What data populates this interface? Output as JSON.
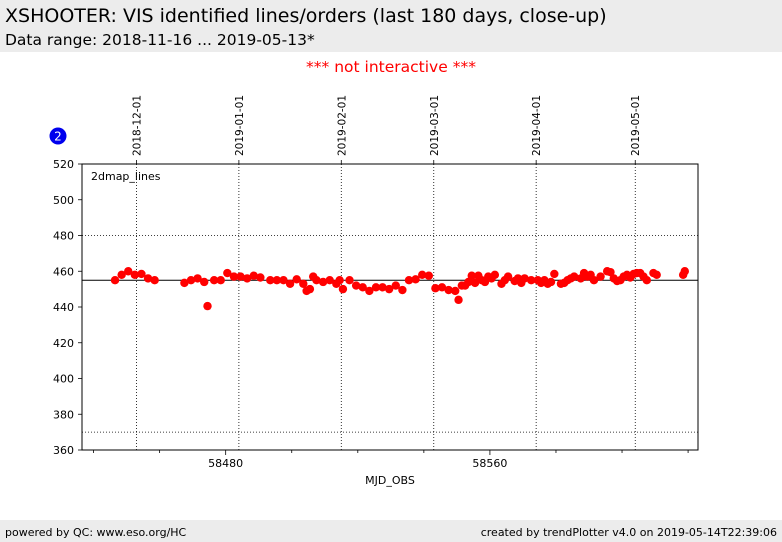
{
  "header": {
    "title": "XSHOOTER: VIS identified lines/orders (last 180 days, close-up)",
    "subtitle": "Data range: 2018-11-16 ... 2019-05-13*"
  },
  "notice": "*** not interactive ***",
  "footer": {
    "left": "powered by QC: www.eso.org/HC",
    "right": "created by trendPlotter v4.0 on 2019-05-14T22:39:06"
  },
  "colors": {
    "marker": "#ff0000",
    "badge": "#0000ee",
    "header_bg": "#ececec",
    "notice": "#ff0000"
  },
  "chart_data": {
    "type": "scatter",
    "badge": "2",
    "panel_label": "2dmap_lines",
    "xlabel": "MJD_OBS",
    "ylabel": "",
    "xlim": [
      58436.5,
      58623
    ],
    "ylim": [
      360,
      520
    ],
    "yticks": [
      360,
      380,
      400,
      420,
      440,
      460,
      480,
      500,
      520
    ],
    "xticks": [
      58480,
      58560
    ],
    "x_minor_ticks": [
      58440,
      58460,
      58500,
      58520,
      58540,
      58580,
      58600,
      58620
    ],
    "date_ticks": [
      {
        "label": "2018-12-01",
        "mjd": 58453
      },
      {
        "label": "2019-01-01",
        "mjd": 58484
      },
      {
        "label": "2019-02-01",
        "mjd": 58515
      },
      {
        "label": "2019-03-01",
        "mjd": 58543
      },
      {
        "label": "2019-04-01",
        "mjd": 58574
      },
      {
        "label": "2019-05-01",
        "mjd": 58604
      }
    ],
    "reference_line": 455,
    "limit_lines": [
      480,
      370
    ],
    "grid": "vertical at date ticks",
    "points": [
      [
        58446.5,
        455
      ],
      [
        58448.5,
        458
      ],
      [
        58450.5,
        460
      ],
      [
        58452.5,
        458
      ],
      [
        58454.5,
        458.5
      ],
      [
        58456.5,
        456
      ],
      [
        58458.5,
        455
      ],
      [
        58467.5,
        453.5
      ],
      [
        58469.5,
        455
      ],
      [
        58471.5,
        456
      ],
      [
        58473.5,
        454
      ],
      [
        58474.5,
        440.5
      ],
      [
        58476.5,
        455
      ],
      [
        58478.5,
        455
      ],
      [
        58480.5,
        459
      ],
      [
        58482.5,
        457
      ],
      [
        58484.5,
        457
      ],
      [
        58486.5,
        456
      ],
      [
        58488.5,
        457.5
      ],
      [
        58490.5,
        456.5
      ],
      [
        58493.5,
        455
      ],
      [
        58495.5,
        455
      ],
      [
        58497.5,
        455
      ],
      [
        58499.5,
        453
      ],
      [
        58501.5,
        455.5
      ],
      [
        58503.5,
        453
      ],
      [
        58504.5,
        449
      ],
      [
        58505.5,
        450
      ],
      [
        58506.5,
        457
      ],
      [
        58507.5,
        455
      ],
      [
        58509.5,
        454
      ],
      [
        58511.5,
        455
      ],
      [
        58513.5,
        453
      ],
      [
        58514.5,
        455
      ],
      [
        58515.5,
        450
      ],
      [
        58517.5,
        455
      ],
      [
        58519.5,
        452
      ],
      [
        58521.5,
        451
      ],
      [
        58523.5,
        449
      ],
      [
        58525.5,
        451
      ],
      [
        58527.5,
        451
      ],
      [
        58529.5,
        450
      ],
      [
        58531.5,
        452
      ],
      [
        58533.5,
        449.5
      ],
      [
        58535.5,
        455
      ],
      [
        58537.5,
        455.5
      ],
      [
        58539.5,
        458
      ],
      [
        58541.5,
        457.5
      ],
      [
        58543.5,
        450.5
      ],
      [
        58545.5,
        451
      ],
      [
        58547.5,
        449.5
      ],
      [
        58549.5,
        449
      ],
      [
        58550.5,
        444
      ],
      [
        58551.5,
        452
      ],
      [
        58552.5,
        452
      ],
      [
        58553.5,
        454
      ],
      [
        58554.5,
        457.5
      ],
      [
        58555.5,
        453.5
      ],
      [
        58556.5,
        457.5
      ],
      [
        58557.5,
        455
      ],
      [
        58558.5,
        454
      ],
      [
        58559.5,
        457
      ],
      [
        58560.5,
        456
      ],
      [
        58561.5,
        458
      ],
      [
        58563.5,
        453
      ],
      [
        58564.5,
        455
      ],
      [
        58565.5,
        457
      ],
      [
        58567.5,
        454.5
      ],
      [
        58568.5,
        456
      ],
      [
        58569.5,
        453.5
      ],
      [
        58570.5,
        456
      ],
      [
        58572.5,
        455
      ],
      [
        58574.5,
        455
      ],
      [
        58575.5,
        453.5
      ],
      [
        58576.5,
        455
      ],
      [
        58577.5,
        453
      ],
      [
        58578.5,
        454
      ],
      [
        58579.5,
        458.5
      ],
      [
        58581.5,
        453
      ],
      [
        58582.5,
        453.5
      ],
      [
        58583.5,
        455
      ],
      [
        58584.5,
        456
      ],
      [
        58585.5,
        457
      ],
      [
        58587.5,
        456
      ],
      [
        58588.5,
        459
      ],
      [
        58589.5,
        457
      ],
      [
        58590.5,
        458
      ],
      [
        58591.5,
        455
      ],
      [
        58593.5,
        457
      ],
      [
        58595.5,
        460
      ],
      [
        58596.5,
        459.5
      ],
      [
        58597.5,
        456
      ],
      [
        58598.5,
        454.5
      ],
      [
        58599.5,
        455
      ],
      [
        58600.5,
        457
      ],
      [
        58601.5,
        458
      ],
      [
        58602.5,
        456.5
      ],
      [
        58603.5,
        458.5
      ],
      [
        58604.5,
        459
      ],
      [
        58605.5,
        459
      ],
      [
        58606.5,
        457
      ],
      [
        58607.5,
        455
      ],
      [
        58609.5,
        459
      ],
      [
        58610.5,
        458
      ],
      [
        58618.5,
        458
      ],
      [
        58619,
        460
      ]
    ]
  }
}
